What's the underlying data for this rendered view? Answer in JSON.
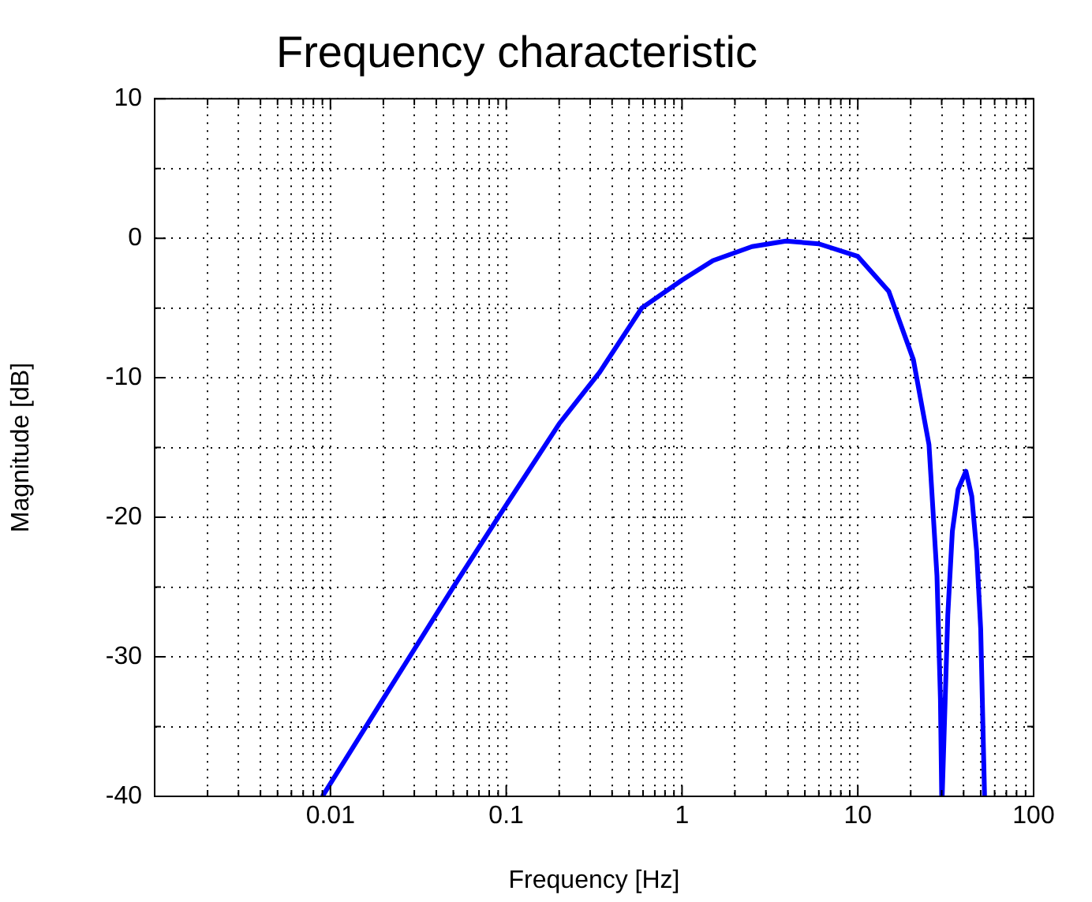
{
  "chart_data": {
    "type": "line",
    "title": "Frequency characteristic",
    "xlabel": "Frequency [Hz]",
    "ylabel": "Magnitude [dB]",
    "log": "x",
    "grid": true,
    "legend": false,
    "marker": "none",
    "line_style": "solid",
    "xlim": [
      0.001,
      100
    ],
    "ylim": [
      -40,
      10
    ],
    "xticks": [
      {
        "value": 0.002,
        "label": null
      },
      {
        "value": 0.003,
        "label": null
      },
      {
        "value": 0.004,
        "label": null
      },
      {
        "value": 0.005,
        "label": null
      },
      {
        "value": 0.006,
        "label": null
      },
      {
        "value": 0.007,
        "label": null
      },
      {
        "value": 0.008,
        "label": null
      },
      {
        "value": 0.009,
        "label": null
      },
      0.01,
      {
        "value": 0.02,
        "label": null
      },
      {
        "value": 0.03,
        "label": null
      },
      {
        "value": 0.04,
        "label": null
      },
      {
        "value": 0.05,
        "label": null
      },
      {
        "value": 0.06,
        "label": null
      },
      {
        "value": 0.07,
        "label": null
      },
      {
        "value": 0.08,
        "label": null
      },
      {
        "value": 0.09,
        "label": null
      },
      0.1,
      {
        "value": 0.2,
        "label": null
      },
      {
        "value": 0.3,
        "label": null
      },
      {
        "value": 0.4,
        "label": null
      },
      {
        "value": 0.5,
        "label": null
      },
      {
        "value": 0.6,
        "label": null
      },
      {
        "value": 0.7,
        "label": null
      },
      {
        "value": 0.8,
        "label": null
      },
      {
        "value": 0.9,
        "label": null
      },
      1,
      {
        "value": 2,
        "label": null
      },
      {
        "value": 3,
        "label": null
      },
      {
        "value": 4,
        "label": null
      },
      {
        "value": 5,
        "label": null
      },
      {
        "value": 6,
        "label": null
      },
      {
        "value": 7,
        "label": null
      },
      {
        "value": 8,
        "label": null
      },
      {
        "value": 9,
        "label": null
      },
      10,
      {
        "value": 20,
        "label": null
      },
      {
        "value": 30,
        "label": null
      },
      {
        "value": 40,
        "label": null
      },
      {
        "value": 50,
        "label": null
      },
      {
        "value": 60,
        "label": null
      },
      {
        "value": 70,
        "label": null
      },
      {
        "value": 80,
        "label": null
      },
      {
        "value": 90,
        "label": null
      },
      100
    ],
    "yticks": [
      -40,
      {
        "value": -35,
        "label": null
      },
      -30,
      {
        "value": -25,
        "label": null
      },
      -20,
      {
        "value": -15,
        "label": null
      },
      -10,
      {
        "value": -5,
        "label": null
      },
      0,
      {
        "value": 5,
        "label": null
      },
      10
    ],
    "series": [
      {
        "color": "#0000ff",
        "x": [
          0.009,
          0.02,
          0.05,
          0.09,
          0.2,
          0.34,
          0.59,
          1,
          1.5,
          2.5,
          3.9,
          6,
          10,
          15,
          20.7,
          25.4,
          28.2,
          29.5,
          30,
          30.2,
          32.5,
          34.5,
          37.2,
          41.2,
          44.5,
          47.4,
          50,
          52.6
        ],
        "values": [
          -40,
          -33,
          -25,
          -20,
          -13.3,
          -9.6,
          -5,
          -3,
          -1.6,
          -0.6,
          -0.2,
          -0.4,
          -1.3,
          -3.8,
          -8.7,
          -14.8,
          -24.2,
          -33,
          -40,
          -40,
          -27,
          -21,
          -18,
          -16.7,
          -18.5,
          -22.4,
          -28,
          -40
        ]
      }
    ]
  }
}
